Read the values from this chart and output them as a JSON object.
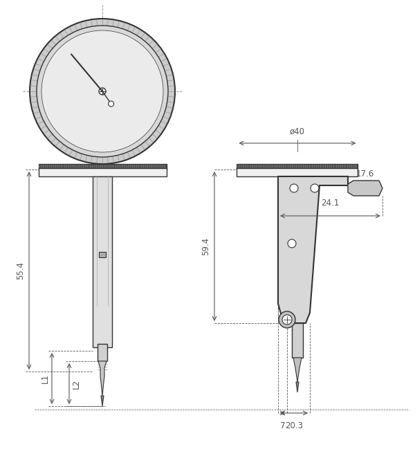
{
  "bg_color": "#ffffff",
  "line_color": "#333333",
  "fill_color": "#e8e8e8",
  "dark_fill": "#555555",
  "dim_color": "#555555",
  "dim_55_4": "55.4",
  "dim_L1": "L1",
  "dim_L2": "L2",
  "dim_40": "ø40",
  "dim_59_4": "59.4",
  "dim_17_6": "17.6",
  "dim_24_1": "24.1",
  "dim_7": "7",
  "dim_20_3": "20.3"
}
